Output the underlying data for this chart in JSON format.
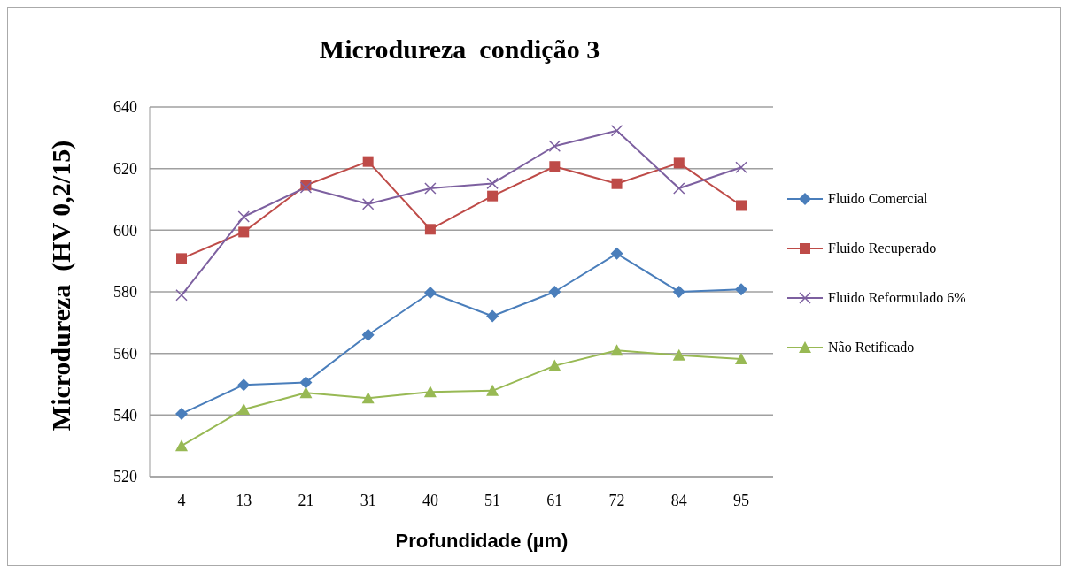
{
  "chart_data": {
    "type": "line",
    "title": "Microdureza  condição 3",
    "xlabel": "Profundidade (µm)",
    "ylabel": "Microdureza  (HV 0,2/15)",
    "categories": [
      "4",
      "13",
      "21",
      "31",
      "40",
      "51",
      "61",
      "72",
      "84",
      "95"
    ],
    "series": [
      {
        "name": "Fluido Comercial",
        "color": "#4a7ebb",
        "marker": "diamond",
        "values": [
          540.4,
          549.8,
          550.6,
          566,
          579.7,
          572.1,
          580,
          592.4,
          580,
          580.8
        ]
      },
      {
        "name": "Fluido Recuperado",
        "color": "#be4b48",
        "marker": "square",
        "values": [
          590.8,
          599.4,
          614.6,
          622.3,
          600.3,
          611.1,
          620.7,
          615.1,
          621.8,
          608
        ]
      },
      {
        "name": "Fluido Reformulado 6%",
        "color": "#7d60a0",
        "marker": "cross",
        "values": [
          578.9,
          604.4,
          613.9,
          608.5,
          613.6,
          615.2,
          627.3,
          632.3,
          613.6,
          620.4
        ]
      },
      {
        "name": "Não Retificado",
        "color": "#98b954",
        "marker": "triangle",
        "values": [
          530,
          541.8,
          547.2,
          545.5,
          547.5,
          547.9,
          556,
          561,
          559.4,
          558.2
        ]
      }
    ],
    "ylim": [
      520,
      640
    ],
    "yticks": [
      520,
      540,
      560,
      580,
      600,
      620,
      640
    ],
    "grid": "y",
    "legend": "right"
  }
}
